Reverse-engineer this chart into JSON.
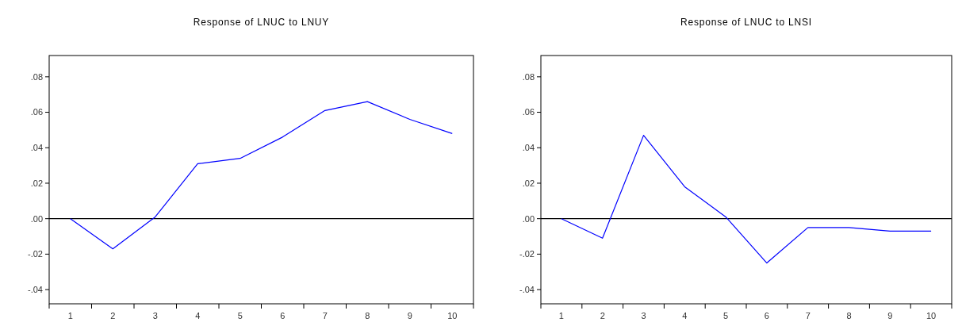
{
  "chart_data": [
    {
      "type": "line",
      "title": "Response of LNUC to LNUY",
      "categories": [
        "1",
        "2",
        "3",
        "4",
        "5",
        "6",
        "7",
        "8",
        "9",
        "10"
      ],
      "series": [
        {
          "color": "#0000ff",
          "values": [
            0.0,
            -0.017,
            0.001,
            0.031,
            0.034,
            0.046,
            0.061,
            0.066,
            0.056,
            0.048
          ]
        }
      ],
      "ylim": [
        -0.048,
        0.092
      ],
      "yticks": [
        {
          "value": -0.04,
          "label": "-.04"
        },
        {
          "value": -0.02,
          "label": "-.02"
        },
        {
          "value": 0,
          "label": ".00"
        },
        {
          "value": 0.02,
          "label": ".02"
        },
        {
          "value": 0.04,
          "label": ".04"
        },
        {
          "value": 0.06,
          "label": ".06"
        },
        {
          "value": 0.08,
          "label": ".08"
        }
      ],
      "ref_lines": [
        {
          "axis": "y",
          "value": 0,
          "color": "#000000"
        }
      ],
      "grid": false
    },
    {
      "type": "line",
      "title": "Response of LNUC to LNSI",
      "categories": [
        "1",
        "2",
        "3",
        "4",
        "5",
        "6",
        "7",
        "8",
        "9",
        "10"
      ],
      "series": [
        {
          "color": "#0000ff",
          "values": [
            0.0,
            -0.011,
            0.047,
            0.018,
            0.001,
            -0.025,
            -0.005,
            -0.005,
            -0.007,
            -0.007
          ]
        }
      ],
      "ylim": [
        -0.048,
        0.092
      ],
      "yticks": [
        {
          "value": -0.04,
          "label": "-.04"
        },
        {
          "value": -0.02,
          "label": "-.02"
        },
        {
          "value": 0,
          "label": ".00"
        },
        {
          "value": 0.02,
          "label": ".02"
        },
        {
          "value": 0.04,
          "label": ".04"
        },
        {
          "value": 0.06,
          "label": ".06"
        },
        {
          "value": 0.08,
          "label": ".08"
        }
      ],
      "ref_lines": [
        {
          "axis": "y",
          "value": 0,
          "color": "#000000"
        }
      ],
      "grid": false
    }
  ]
}
